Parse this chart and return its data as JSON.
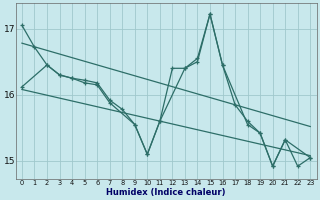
{
  "xlabel": "Humidex (Indice chaleur)",
  "bg_color": "#c8e8ec",
  "grid_color": "#a0c8cc",
  "line_color": "#2d6e68",
  "xlim": [
    -0.5,
    23.5
  ],
  "ylim": [
    14.72,
    17.38
  ],
  "yticks": [
    15,
    16,
    17
  ],
  "xticks": [
    0,
    1,
    2,
    3,
    4,
    5,
    6,
    7,
    8,
    9,
    10,
    11,
    12,
    13,
    14,
    15,
    16,
    17,
    18,
    19,
    20,
    21,
    22,
    23
  ],
  "line1_x": [
    0,
    1,
    2,
    3,
    4,
    5,
    6,
    7,
    8,
    9,
    10,
    11,
    12,
    13,
    14,
    15,
    16,
    17,
    18,
    19,
    20,
    21,
    22,
    23
  ],
  "line1_y": [
    17.05,
    16.72,
    16.45,
    16.3,
    16.25,
    16.22,
    16.18,
    15.92,
    15.78,
    15.55,
    15.1,
    15.6,
    16.4,
    16.4,
    16.55,
    17.22,
    16.45,
    15.85,
    15.6,
    15.42,
    14.92,
    15.32,
    14.92,
    15.05
  ],
  "line2_x": [
    0,
    2,
    3,
    4,
    5,
    6,
    7,
    9,
    10,
    11,
    13,
    14,
    15,
    16,
    18,
    19,
    20,
    21,
    23
  ],
  "line2_y": [
    16.12,
    16.45,
    16.3,
    16.25,
    16.18,
    16.15,
    15.88,
    15.55,
    15.1,
    15.6,
    16.4,
    16.5,
    17.22,
    16.45,
    15.55,
    15.42,
    14.92,
    15.32,
    15.05
  ],
  "trend1_x": [
    0,
    23
  ],
  "trend1_y": [
    16.78,
    15.52
  ],
  "trend2_x": [
    0,
    23
  ],
  "trend2_y": [
    16.08,
    15.08
  ]
}
